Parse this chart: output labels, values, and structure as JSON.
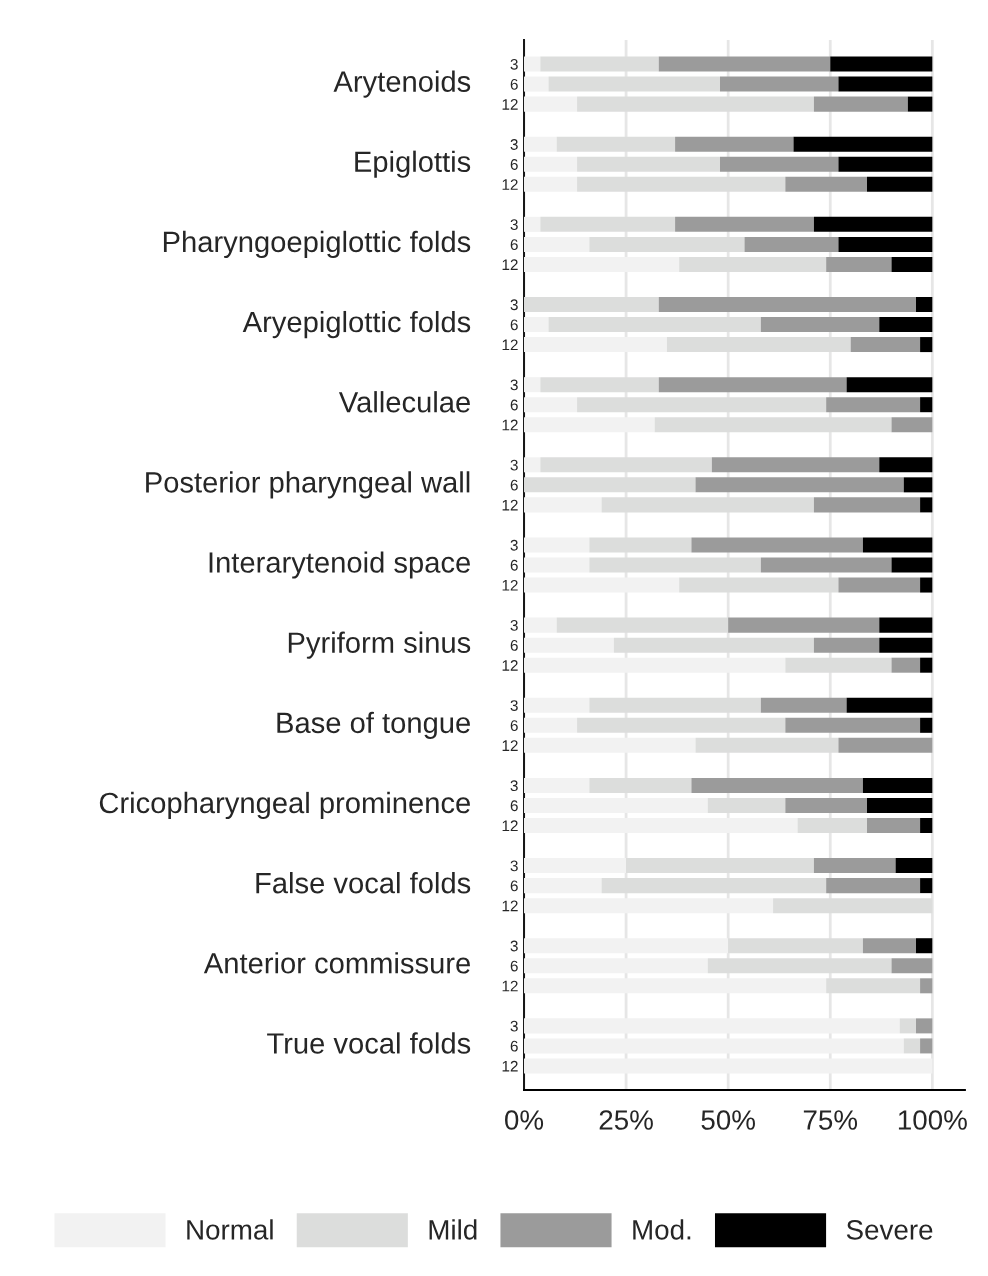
{
  "chart_data": {
    "type": "bar",
    "orientation": "horizontal",
    "stacked": true,
    "categories": [
      "3",
      "6",
      "12",
      null,
      "3",
      "6",
      "12",
      null,
      "3",
      "6",
      "12",
      null,
      "3",
      "6",
      "12",
      null,
      "3",
      "6",
      "12",
      null,
      "3",
      "6",
      "12",
      null,
      "3",
      "6",
      "12",
      null,
      "3",
      "6",
      "12",
      null,
      "3",
      "6",
      "12",
      null,
      "3",
      "6",
      "12",
      null,
      "3",
      "6",
      "12",
      null,
      "3",
      "6",
      "12",
      null,
      "3",
      "6",
      "12"
    ],
    "annotations": [
      "Arytenoids",
      "Epiglottis",
      "Pharyngoepiglottic folds",
      "Aryepiglottic folds",
      "Valleculae",
      "Posterior pharyngeal wall",
      "Interarytenoid space",
      "Pyriform sinus",
      "Base of tongue",
      "Cricopharyngeal prominence",
      "False vocal folds",
      "Anterior commissure",
      "True vocal folds"
    ],
    "series": [
      {
        "name": "Normal",
        "color": "#f2f2f2",
        "values": [
          4,
          6,
          13,
          null,
          8,
          13,
          13,
          null,
          4,
          16,
          38,
          null,
          0,
          6,
          35,
          null,
          4,
          13,
          32,
          null,
          4,
          0,
          19,
          null,
          16,
          16,
          38,
          null,
          8,
          22,
          64,
          null,
          16,
          13,
          42,
          null,
          16,
          45,
          67,
          null,
          25,
          19,
          61,
          null,
          50,
          45,
          74,
          null,
          92,
          93,
          100
        ]
      },
      {
        "name": "Mild",
        "color": "#dcdddc",
        "values": [
          29,
          42,
          58,
          null,
          29,
          35,
          51,
          null,
          33,
          38,
          36,
          null,
          33,
          52,
          45,
          null,
          29,
          61,
          58,
          null,
          42,
          42,
          52,
          null,
          25,
          42,
          39,
          null,
          42,
          49,
          26,
          null,
          42,
          51,
          35,
          null,
          25,
          19,
          17,
          null,
          46,
          55,
          39,
          null,
          33,
          45,
          23,
          null,
          4,
          4,
          0
        ]
      },
      {
        "name": "Mod.",
        "color": "#9b9b9b",
        "values": [
          42,
          29,
          23,
          null,
          29,
          29,
          20,
          null,
          34,
          23,
          16,
          null,
          63,
          29,
          17,
          null,
          46,
          23,
          10,
          null,
          41,
          51,
          26,
          null,
          42,
          32,
          20,
          null,
          37,
          16,
          7,
          null,
          21,
          33,
          23,
          null,
          42,
          20,
          13,
          null,
          20,
          23,
          0,
          null,
          13,
          10,
          3,
          null,
          4,
          3,
          0
        ]
      },
      {
        "name": "Severe",
        "color": "#000000",
        "values": [
          25,
          23,
          6,
          null,
          34,
          23,
          16,
          null,
          29,
          23,
          10,
          null,
          4,
          13,
          3,
          null,
          21,
          3,
          0,
          null,
          13,
          7,
          3,
          null,
          17,
          10,
          3,
          null,
          13,
          13,
          3,
          null,
          21,
          3,
          0,
          null,
          17,
          16,
          3,
          null,
          9,
          3,
          0,
          null,
          4,
          0,
          0,
          null,
          0,
          0,
          0
        ]
      }
    ],
    "xlim": [
      0,
      108
    ],
    "xticks": [
      {
        "value": 0,
        "label": "0%"
      },
      {
        "value": 25,
        "label": "25%"
      },
      {
        "value": 50,
        "label": "50%"
      },
      {
        "value": 75,
        "label": "75%"
      },
      {
        "value": 100,
        "label": "100%"
      }
    ],
    "grid": "x",
    "legend": "bottom"
  }
}
